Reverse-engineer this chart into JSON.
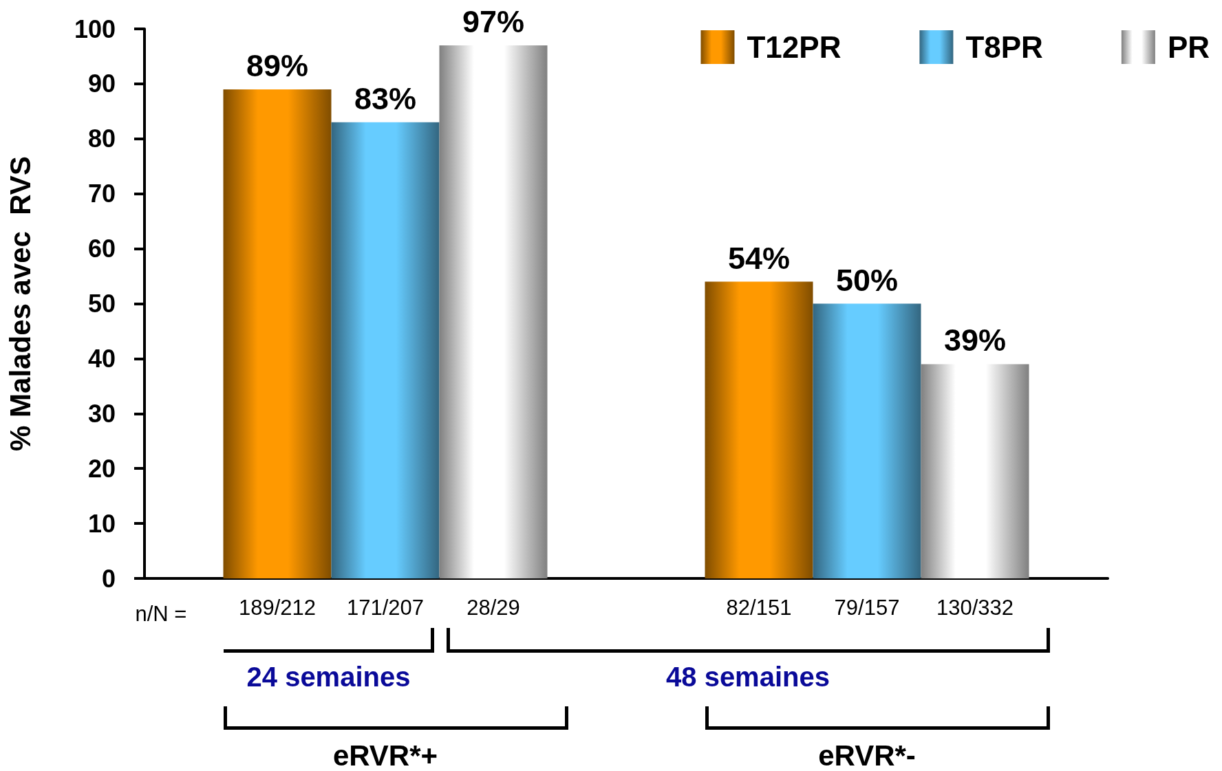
{
  "chart_data": {
    "type": "bar",
    "ylabel": "% Malades avec  RVS",
    "categories": [
      "eRVR*+",
      "eRVR*-"
    ],
    "series": [
      {
        "name": "T12PR",
        "color": "#ff9900",
        "values": [
          89,
          54
        ],
        "value_labels": [
          "89%",
          "54%"
        ]
      },
      {
        "name": "T8PR",
        "color": "#66ccff",
        "values": [
          83,
          50
        ],
        "value_labels": [
          "83%",
          "50%"
        ]
      },
      {
        "name": "PR",
        "color": "#ffffff",
        "values": [
          97,
          39
        ],
        "value_labels": [
          "97%",
          "39%"
        ]
      }
    ],
    "ylim": [
      0,
      100
    ],
    "yticks": [
      0,
      10,
      20,
      30,
      40,
      50,
      60,
      70,
      80,
      90,
      100
    ],
    "grid": false,
    "legend": "top right",
    "annotations": [
      "n/N =",
      "189/212",
      "171/207",
      "28/29",
      "82/151",
      "79/157",
      "130/332",
      "24 semaines",
      "48 semaines"
    ]
  }
}
